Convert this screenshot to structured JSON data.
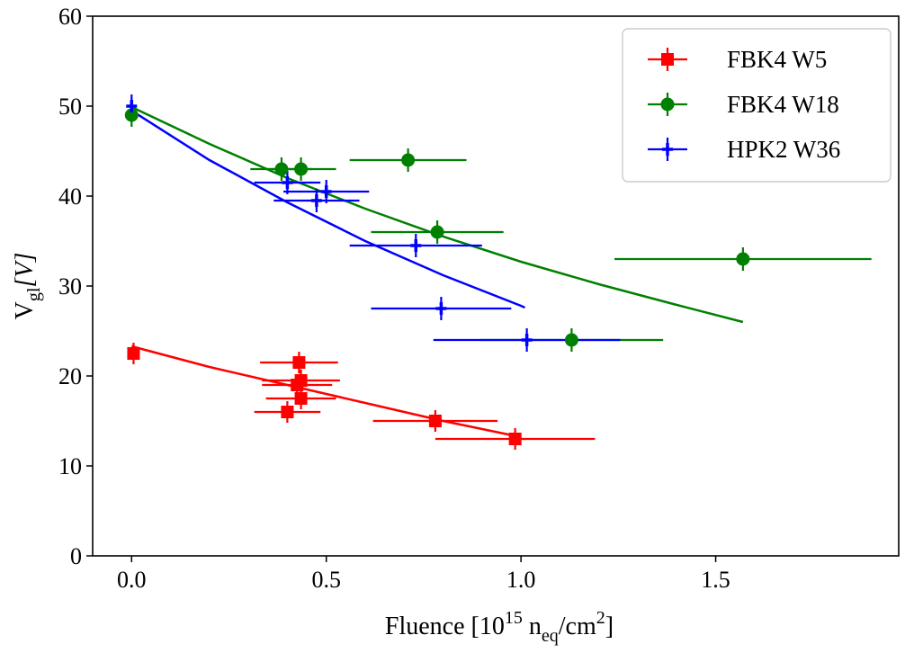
{
  "chart_data": {
    "type": "scatter",
    "title": "",
    "xlabel": {
      "text": "Fluence [10",
      "sup": "15",
      "mid": " n",
      "sub": "eq",
      "tail": "/cm",
      "sup2": "2",
      "end": "]"
    },
    "ylabel": {
      "text": "V",
      "sub": "gl",
      "unit": "[V]"
    },
    "xlim": [
      -0.1,
      1.97
    ],
    "ylim": [
      0,
      60
    ],
    "xticks": [
      0.0,
      0.5,
      1.0,
      1.5
    ],
    "xtick_labels": [
      "0.0",
      "0.5",
      "1.0",
      "1.5"
    ],
    "yticks": [
      0,
      10,
      20,
      30,
      40,
      50,
      60
    ],
    "ytick_labels": [
      "0",
      "10",
      "20",
      "30",
      "40",
      "50",
      "60"
    ],
    "grid": false,
    "legend_position": "top-right",
    "series": [
      {
        "name": "FBK4 W5",
        "color": "#ff0000",
        "marker": "square",
        "points": [
          {
            "x": 0.005,
            "y": 22.5,
            "xerr": 0.005,
            "yerr": 1.2
          },
          {
            "x": 0.43,
            "y": 21.5,
            "xerr": 0.1,
            "yerr": 1.2
          },
          {
            "x": 0.435,
            "y": 19.5,
            "xerr": 0.1,
            "yerr": 1.2
          },
          {
            "x": 0.425,
            "y": 19.0,
            "xerr": 0.09,
            "yerr": 1.2
          },
          {
            "x": 0.435,
            "y": 17.5,
            "xerr": 0.09,
            "yerr": 1.2
          },
          {
            "x": 0.4,
            "y": 16.0,
            "xerr": 0.085,
            "yerr": 1.2
          },
          {
            "x": 0.78,
            "y": 15.0,
            "xerr": 0.16,
            "yerr": 1.2
          },
          {
            "x": 0.985,
            "y": 13.0,
            "xerr": 0.205,
            "yerr": 1.2
          }
        ],
        "fit": {
          "x": [
            0.0,
            0.2,
            0.4,
            0.6,
            0.8,
            1.0
          ],
          "y": [
            23.3,
            21.0,
            19.0,
            17.0,
            15.0,
            13.2
          ]
        }
      },
      {
        "name": "FBK4 W18",
        "color": "#008000",
        "marker": "circle",
        "points": [
          {
            "x": 0.0,
            "y": 49.0,
            "xerr": 0.005,
            "yerr": 1.3
          },
          {
            "x": 0.385,
            "y": 43.0,
            "xerr": 0.08,
            "yerr": 1.3
          },
          {
            "x": 0.435,
            "y": 43.0,
            "xerr": 0.09,
            "yerr": 1.3
          },
          {
            "x": 0.71,
            "y": 44.0,
            "xerr": 0.15,
            "yerr": 1.3
          },
          {
            "x": 0.785,
            "y": 36.0,
            "xerr": 0.17,
            "yerr": 1.3
          },
          {
            "x": 1.13,
            "y": 24.0,
            "xerr": 0.235,
            "yerr": 1.3
          },
          {
            "x": 1.57,
            "y": 33.0,
            "xerr": 0.33,
            "yerr": 1.3
          }
        ],
        "fit": {
          "x": [
            0.0,
            0.2,
            0.4,
            0.6,
            0.8,
            1.0,
            1.2,
            1.4,
            1.57
          ],
          "y": [
            49.9,
            45.8,
            42.0,
            38.6,
            35.5,
            32.7,
            30.2,
            27.9,
            26.0
          ]
        }
      },
      {
        "name": "HPK2 W36",
        "color": "#0000ff",
        "marker": "plus",
        "points": [
          {
            "x": 0.0,
            "y": 50.0,
            "xerr": 0.005,
            "yerr": 1.3
          },
          {
            "x": 0.4,
            "y": 41.5,
            "xerr": 0.085,
            "yerr": 1.3
          },
          {
            "x": 0.5,
            "y": 40.5,
            "xerr": 0.11,
            "yerr": 1.3
          },
          {
            "x": 0.475,
            "y": 39.5,
            "xerr": 0.11,
            "yerr": 1.3
          },
          {
            "x": 0.73,
            "y": 34.5,
            "xerr": 0.17,
            "yerr": 1.3
          },
          {
            "x": 0.795,
            "y": 27.5,
            "xerr": 0.18,
            "yerr": 1.3
          },
          {
            "x": 1.015,
            "y": 24.0,
            "xerr": 0.24,
            "yerr": 1.3
          }
        ],
        "fit": {
          "x": [
            0.0,
            0.2,
            0.4,
            0.6,
            0.8,
            1.0,
            1.01
          ],
          "y": [
            49.5,
            44.0,
            39.3,
            35.0,
            31.2,
            27.8,
            27.6
          ]
        }
      }
    ]
  }
}
